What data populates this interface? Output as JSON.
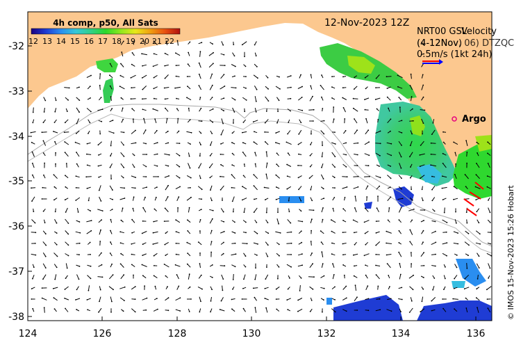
{
  "title": "12-Nov-2023 12Z",
  "colorbar": {
    "label": "4h comp, p50, All Sats",
    "ticks": [
      "12",
      "13",
      "14",
      "15",
      "16",
      "17",
      "18",
      "19",
      "20",
      "21",
      "22"
    ]
  },
  "legend": {
    "line1a": "NRT00 GSL",
    "line1b": "Velocity",
    "line2a": "(4-12Nov)",
    "line2b": "(4-12Nov, 06) DTZQC",
    "line3": "0.5m/s (1kt 24h)"
  },
  "argo_label": "Argo",
  "credit": "© IMOS 15-Nov-2023 15:26 Hobart",
  "x_ticks": [
    "124",
    "126",
    "128",
    "130",
    "132",
    "134",
    "136"
  ],
  "y_ticks": [
    "-32",
    "-33",
    "-34",
    "-35",
    "-36",
    "-37",
    "-38"
  ],
  "colors": {
    "land": "#fcc88f",
    "ocean": "#ffffff",
    "argo": "#e6007e",
    "vector_blue": "#0000ff",
    "vector_red": "#ff0000"
  }
}
